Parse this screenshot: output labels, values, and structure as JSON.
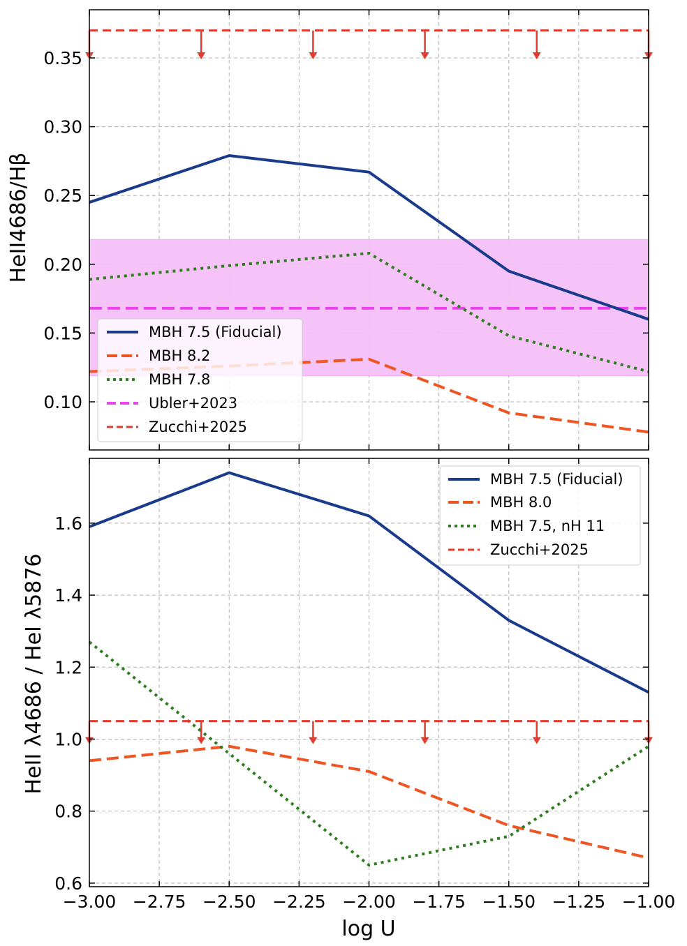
{
  "chart_data": [
    {
      "type": "line",
      "panel": "top",
      "xlabel": "",
      "ylabel": "HeII4686/Hβ",
      "xlim": [
        -3.0,
        -1.0
      ],
      "ylim": [
        0.065,
        0.385
      ],
      "grid": true,
      "x_ticks": [
        -3.0,
        -2.75,
        -2.5,
        -2.25,
        -2.0,
        -1.75,
        -1.5,
        -1.25,
        -1.0
      ],
      "y_ticks": [
        0.1,
        0.15,
        0.2,
        0.25,
        0.3,
        0.35
      ],
      "y_tick_labels": [
        "0.10",
        "0.15",
        "0.20",
        "0.25",
        "0.30",
        "0.35"
      ],
      "series": [
        {
          "name": "MBH 7.5 (Fiducial)",
          "x": [
            -3.0,
            -2.5,
            -2.0,
            -1.5,
            -1.0
          ],
          "values": [
            0.245,
            0.279,
            0.267,
            0.195,
            0.16
          ],
          "color": "#1a3a8c",
          "style": "solid"
        },
        {
          "name": "MBH 8.2",
          "x": [
            -3.0,
            -2.5,
            -2.0,
            -1.5,
            -1.0
          ],
          "values": [
            0.122,
            0.126,
            0.131,
            0.092,
            0.078
          ],
          "color": "#ee5522",
          "style": "dashed"
        },
        {
          "name": "MBH 7.8",
          "x": [
            -3.0,
            -2.5,
            -2.0,
            -1.5,
            -1.0
          ],
          "values": [
            0.189,
            0.199,
            0.208,
            0.148,
            0.122
          ],
          "color": "#2e7d1e",
          "style": "dotted"
        }
      ],
      "bands": [
        {
          "name": "Ubler+2023",
          "center": 0.168,
          "low": 0.119,
          "high": 0.218,
          "color": "#ee44ee",
          "fill": "#f4c0f8"
        }
      ],
      "upper_limits": [
        {
          "name": "Zucchi+2025",
          "value": 0.37,
          "arrow_to": 0.35,
          "arrow_x": [
            -3.0,
            -2.6,
            -2.2,
            -1.8,
            -1.4,
            -1.0
          ],
          "color": "#e53a2e"
        }
      ],
      "legend": {
        "position": "lower-left",
        "entries": [
          "MBH 7.5 (Fiducial)",
          "MBH 8.2",
          "MBH 7.8",
          "Ubler+2023",
          "Zucchi+2025"
        ]
      }
    },
    {
      "type": "line",
      "panel": "bottom",
      "xlabel": "log U",
      "ylabel": "HeII λ4686 / HeI λ5876",
      "xlim": [
        -3.0,
        -1.0
      ],
      "ylim": [
        0.59,
        1.78
      ],
      "grid": true,
      "x_ticks": [
        -3.0,
        -2.75,
        -2.5,
        -2.25,
        -2.0,
        -1.75,
        -1.5,
        -1.25,
        -1.0
      ],
      "x_tick_labels": [
        "−3.00",
        "−2.75",
        "−2.50",
        "−2.25",
        "−2.00",
        "−1.75",
        "−1.50",
        "−1.25",
        "−1.00"
      ],
      "y_ticks": [
        0.6,
        0.8,
        1.0,
        1.2,
        1.4,
        1.6
      ],
      "y_tick_labels": [
        "0.6",
        "0.8",
        "1.0",
        "1.2",
        "1.4",
        "1.6"
      ],
      "series": [
        {
          "name": "MBH 7.5 (Fiducial)",
          "x": [
            -3.0,
            -2.5,
            -2.0,
            -1.5,
            -1.0
          ],
          "values": [
            1.59,
            1.74,
            1.62,
            1.33,
            1.13
          ],
          "color": "#1a3a8c",
          "style": "solid"
        },
        {
          "name": "MBH 8.0",
          "x": [
            -3.0,
            -2.5,
            -2.0,
            -1.5,
            -1.0
          ],
          "values": [
            0.94,
            0.98,
            0.91,
            0.76,
            0.67
          ],
          "color": "#ee5522",
          "style": "dashed"
        },
        {
          "name": "MBH 7.5, nH 11",
          "x": [
            -3.0,
            -2.5,
            -2.0,
            -1.5,
            -1.0
          ],
          "values": [
            1.27,
            0.96,
            0.65,
            0.73,
            0.98
          ],
          "color": "#2e7d1e",
          "style": "dotted"
        }
      ],
      "upper_limits": [
        {
          "name": "Zucchi+2025",
          "value": 1.05,
          "arrow_to": 0.99,
          "arrow_x": [
            -3.0,
            -2.6,
            -2.2,
            -1.8,
            -1.4,
            -1.0
          ],
          "color": "#e53a2e"
        }
      ],
      "legend": {
        "position": "upper-right",
        "entries": [
          "MBH 7.5 (Fiducial)",
          "MBH 8.0",
          "MBH 7.5, nH 11",
          "Zucchi+2025"
        ]
      }
    }
  ]
}
